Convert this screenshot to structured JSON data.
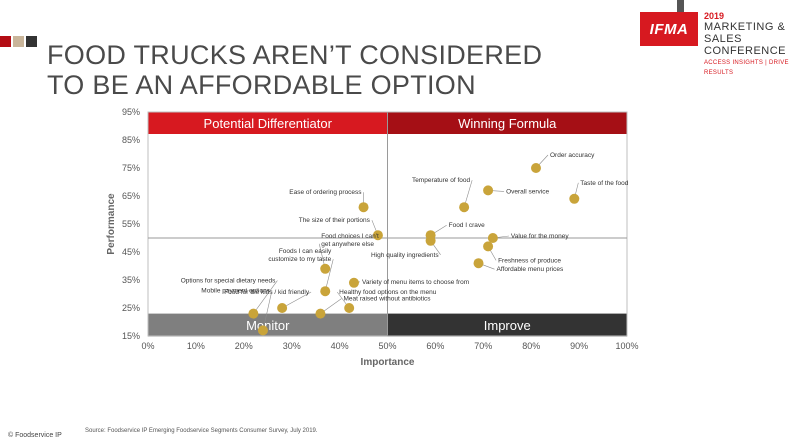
{
  "brand": {
    "squares": [
      "#b30d14",
      "#c9b59a",
      "#333333"
    ],
    "logo_text": "IFMA",
    "year": "2019",
    "conference_line1": "MARKETING & SALES",
    "conference_line2": "CONFERENCE",
    "tagline": "ACCESS INSIGHTS | DRIVE RESULTS",
    "accent": "#d71920"
  },
  "title_lines": [
    "FOOD TRUCKS AREN’T CONSIDERED",
    "TO BE AN AFFORDABLE OPTION"
  ],
  "footer": {
    "source": "Source: Foodservice IP Emerging Foodservice Segments Consumer Survey, July 2019.",
    "copyright": "© Foodservice IP"
  },
  "chart_data": {
    "type": "scatter",
    "xlabel": "Importance",
    "ylabel": "Performance",
    "xlim": [
      0,
      100
    ],
    "ylim": [
      15,
      95
    ],
    "xticks": [
      "0%",
      "10%",
      "20%",
      "30%",
      "40%",
      "50%",
      "60%",
      "70%",
      "80%",
      "90%",
      "100%"
    ],
    "yticks": [
      "15%",
      "25%",
      "35%",
      "45%",
      "55%",
      "65%",
      "75%",
      "85%",
      "95%"
    ],
    "grid": false,
    "point_color": "#c9a43a",
    "quadrants": [
      {
        "label": "Potential Differentiator",
        "color": "#d71920"
      },
      {
        "label": "Winning Formula",
        "color": "#a50f15"
      },
      {
        "label": "Monitor",
        "color": "#7f7f7f"
      },
      {
        "label": "Improve",
        "color": "#333333"
      }
    ],
    "points": [
      {
        "label": "Order accuracy",
        "x": 81,
        "y": 75
      },
      {
        "label": "Taste of the food",
        "x": 89,
        "y": 64
      },
      {
        "label": "Overall service",
        "x": 71,
        "y": 67
      },
      {
        "label": "Temperature of food",
        "x": 66,
        "y": 61
      },
      {
        "label": "Ease of ordering process",
        "x": 45,
        "y": 61
      },
      {
        "label": "The size of their portions",
        "x": 48,
        "y": 51
      },
      {
        "label": "Food I crave",
        "x": 59,
        "y": 51
      },
      {
        "label": "Value for the money",
        "x": 72,
        "y": 50
      },
      {
        "label": "Freshness of produce",
        "x": 71,
        "y": 47
      },
      {
        "label": "High quality ingredients",
        "x": 59,
        "y": 49
      },
      {
        "label": "Affordable menu prices",
        "x": 69,
        "y": 41
      },
      {
        "label": "Food choices I can't get anywhere else",
        "x": 37,
        "y": 39
      },
      {
        "label": "Foods I can easily customize to my taste",
        "x": 37,
        "y": 31
      },
      {
        "label": "Variety of menu items to choose from",
        "x": 43,
        "y": 34
      },
      {
        "label": "Food for the kids / kid friendly",
        "x": 28,
        "y": 25
      },
      {
        "label": "Healthy food options on the menu",
        "x": 42,
        "y": 25
      },
      {
        "label": "Options for special dietary needs",
        "x": 22,
        "y": 23
      },
      {
        "label": "Mobile payment options",
        "x": 24,
        "y": 17
      },
      {
        "label": "Meat raised without antibiotics",
        "x": 36,
        "y": 23
      }
    ]
  }
}
